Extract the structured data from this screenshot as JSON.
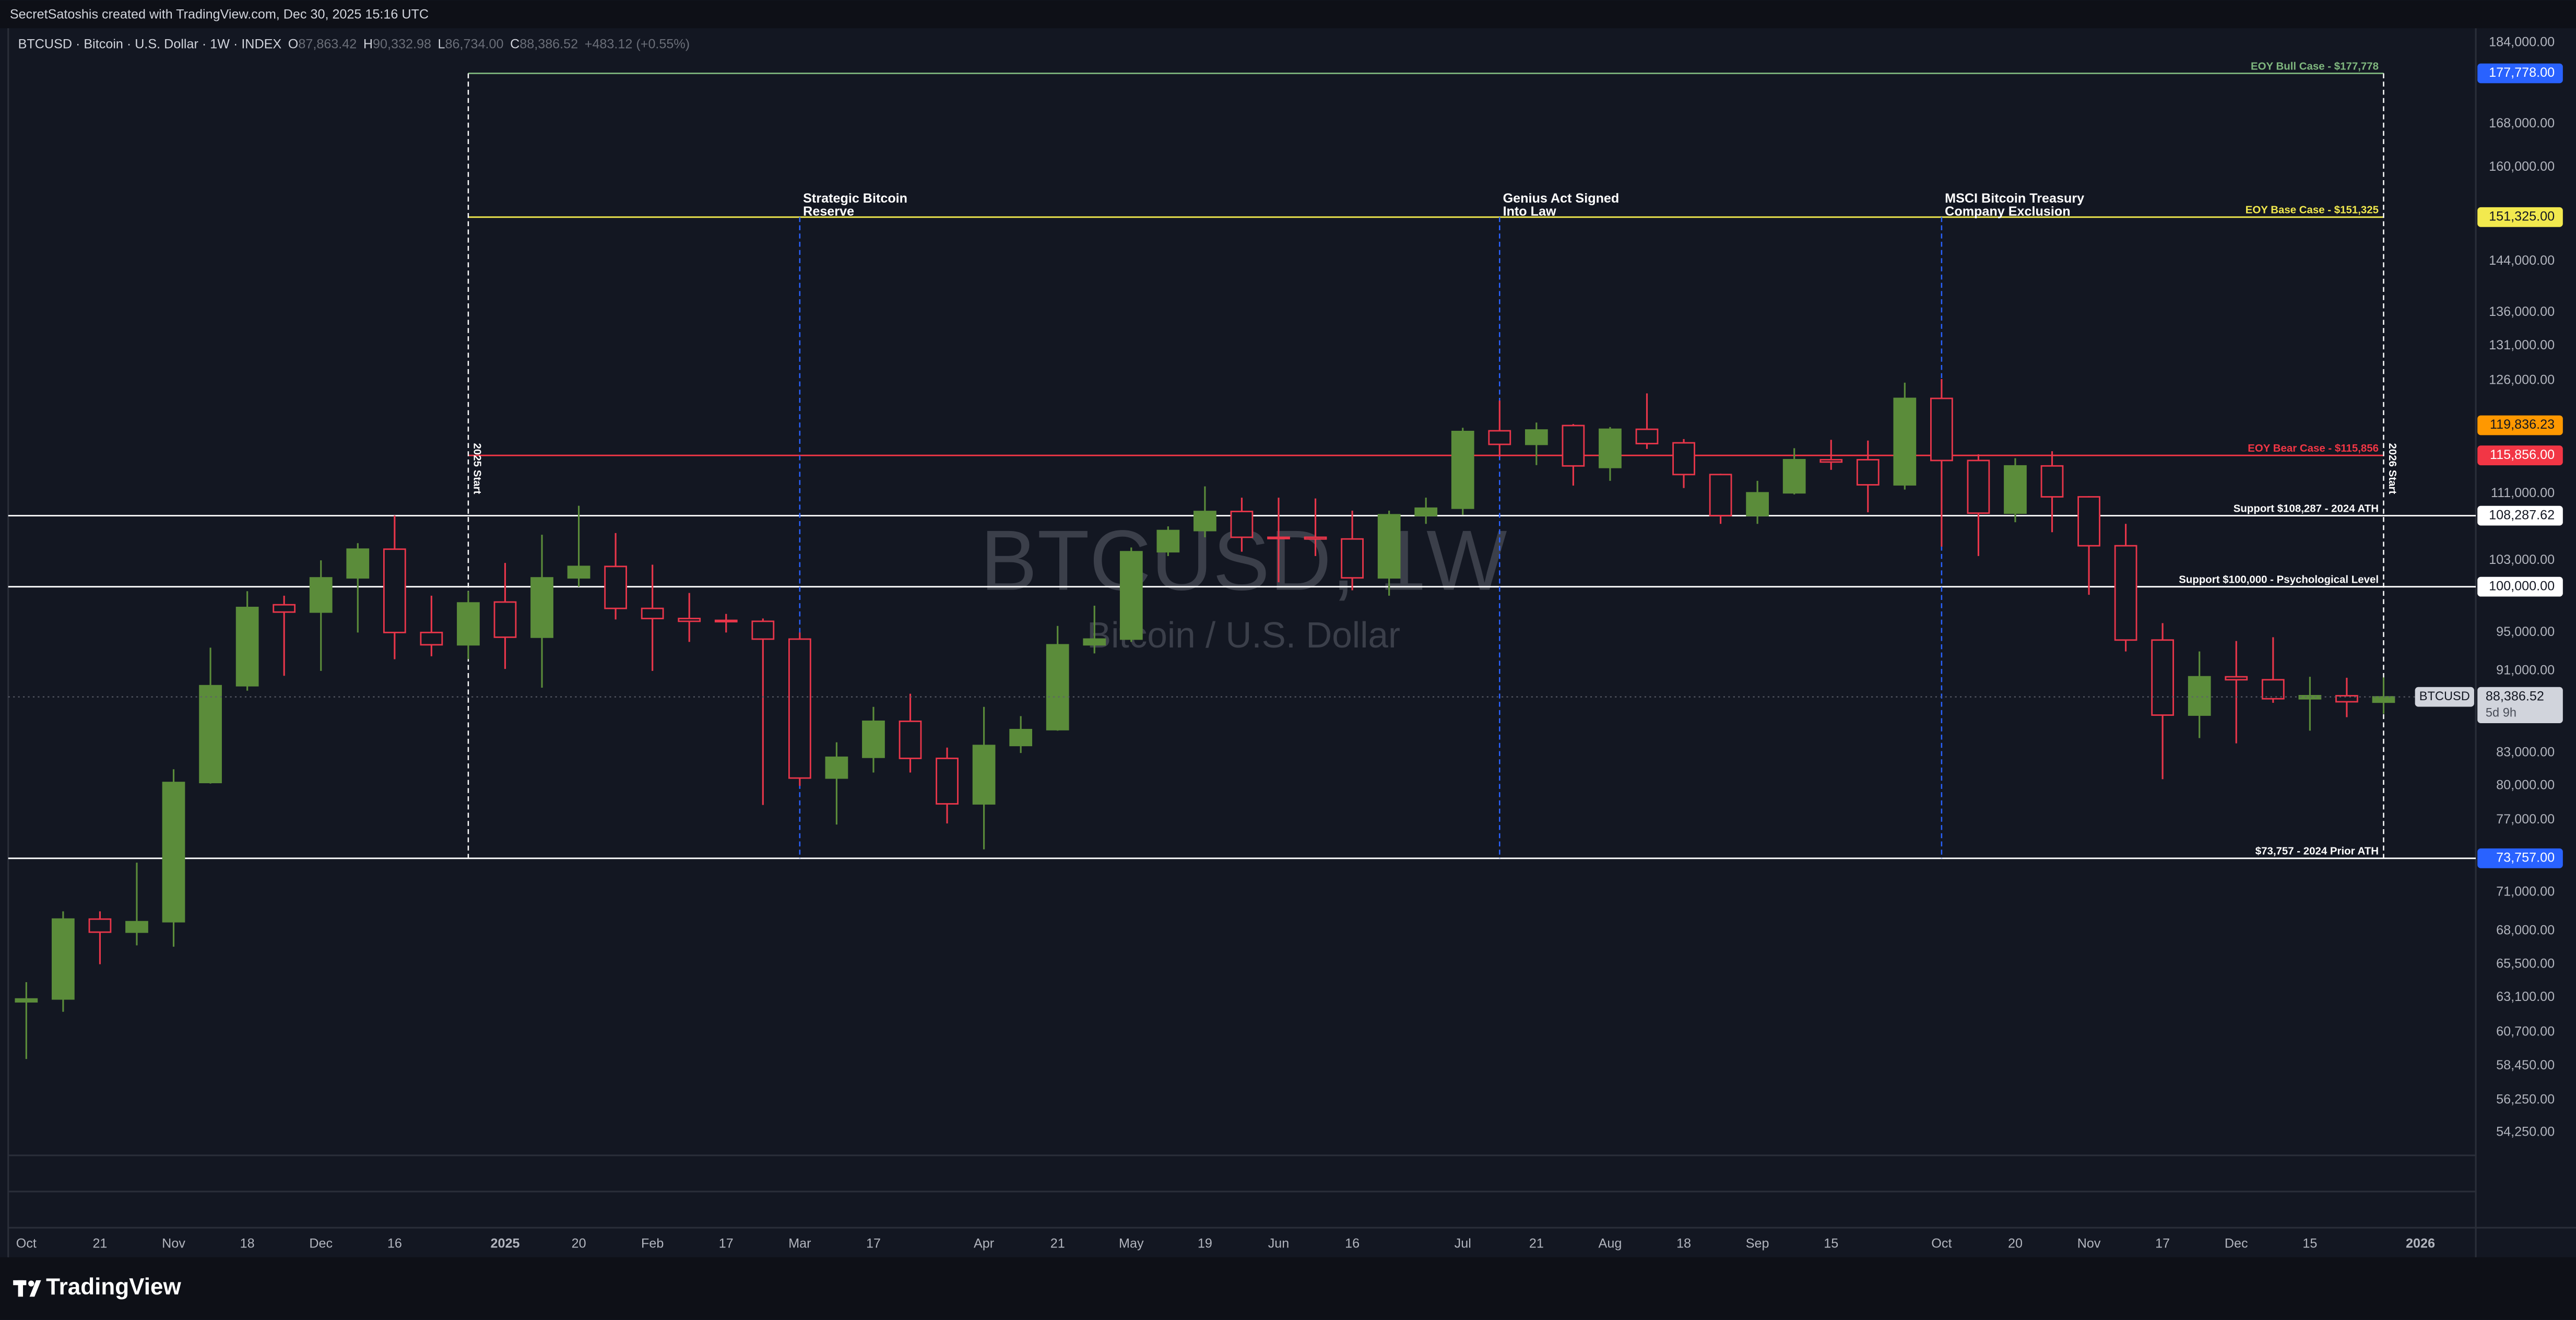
{
  "header": {
    "byline": "SecretSatoshis created with TradingView.com, Dec 30, 2025 15:16 UTC",
    "symbol": "BTCUSD · Bitcoin · U.S. Dollar · 1W · INDEX",
    "ohlc": [
      {
        "key": "O",
        "text": "87,863.42"
      },
      {
        "key": "H",
        "text": "90,332.98"
      },
      {
        "key": "L",
        "text": "86,734.00"
      },
      {
        "key": "C",
        "text": "88,386.52"
      }
    ],
    "change": "+483.12 (+0.55%)"
  },
  "watermark": {
    "title": "BTCUSD, 1W",
    "subtitle": "Bitcoin / U.S. Dollar"
  },
  "footer": {
    "logo": "TradingView"
  },
  "chart_data": {
    "type": "candlestick",
    "log_scale": true,
    "grid": false,
    "up_color": "#5b8c3a",
    "down_color": "#e8364a",
    "categories": [
      "Oct",
      null,
      "21",
      null,
      "Nov",
      null,
      "18",
      null,
      "Dec",
      null,
      "16",
      null,
      null,
      "2025",
      null,
      "20",
      null,
      "Feb",
      null,
      "17",
      null,
      "Mar",
      null,
      "17",
      null,
      null,
      "Apr",
      null,
      "21",
      null,
      "May",
      null,
      "19",
      null,
      "Jun",
      null,
      "16",
      null,
      null,
      "Jul",
      null,
      "21",
      null,
      "Aug",
      null,
      "18",
      null,
      "Sep",
      null,
      "15",
      null,
      null,
      "Oct",
      null,
      "20",
      null,
      "Nov",
      null,
      "17",
      null,
      "Dec",
      null,
      "15",
      null,
      null,
      "2026"
    ],
    "open": [
      62800,
      63000,
      68900,
      67900,
      68700,
      80300,
      89500,
      98000,
      97200,
      101000,
      104300,
      95000,
      93700,
      98300,
      94500,
      101000,
      102300,
      97600,
      96500,
      96300,
      96200,
      94300,
      80700,
      82600,
      86000,
      82500,
      78400,
      83700,
      85200,
      93700,
      94300,
      104000,
      106500,
      108800,
      105700,
      105700,
      105500,
      101000,
      108300,
      109200,
      119100,
      117300,
      119800,
      114300,
      119300,
      117500,
      113400,
      108300,
      111100,
      115300,
      115300,
      112100,
      123500,
      115200,
      108600,
      114500,
      110600,
      104700,
      94200,
      86600,
      90400,
      90100,
      88200,
      88500,
      87863.42,
      null
    ],
    "high": [
      64200,
      69500,
      69500,
      73400,
      81500,
      93400,
      99500,
      99000,
      103000,
      105000,
      108300,
      99000,
      99500,
      102700,
      106000,
      109500,
      106200,
      102500,
      99300,
      97000,
      96500,
      95000,
      84000,
      87400,
      88700,
      83500,
      87400,
      86500,
      95700,
      97900,
      104500,
      107000,
      111900,
      110500,
      110500,
      110400,
      108900,
      108900,
      110500,
      119500,
      123200,
      120200,
      120000,
      119600,
      124200,
      118000,
      113500,
      112600,
      116800,
      117900,
      117800,
      125700,
      126200,
      116000,
      115500,
      116400,
      110700,
      107300,
      96000,
      93000,
      94100,
      94500,
      90400,
      90300,
      90332.98,
      null
    ],
    "low": [
      58900,
      62100,
      65500,
      66900,
      66800,
      80200,
      89000,
      90500,
      91000,
      95000,
      92200,
      92500,
      92200,
      91200,
      89300,
      100000,
      96400,
      91000,
      94000,
      95000,
      78300,
      80000,
      76600,
      81200,
      81200,
      76700,
      74500,
      83000,
      85100,
      92800,
      94000,
      103500,
      105700,
      104000,
      100500,
      103500,
      99600,
      99000,
      107300,
      108400,
      115700,
      114600,
      112000,
      112600,
      116700,
      111700,
      107300,
      107300,
      110900,
      114000,
      108700,
      111500,
      104600,
      103500,
      107500,
      106300,
      99100,
      93000,
      80600,
      84400,
      83900,
      87800,
      85100,
      86400,
      86734,
      null
    ],
    "close": [
      63000,
      68900,
      67900,
      68700,
      80300,
      89500,
      97700,
      97200,
      101000,
      104300,
      95000,
      93700,
      98200,
      94500,
      101000,
      102300,
      97600,
      96500,
      96200,
      96200,
      94300,
      80700,
      82600,
      86000,
      82500,
      78400,
      83700,
      85200,
      93700,
      94300,
      104000,
      106500,
      108800,
      105700,
      105600,
      105500,
      101000,
      108400,
      109200,
      119000,
      117300,
      119200,
      114500,
      119300,
      117400,
      113400,
      108300,
      111100,
      115300,
      115000,
      112100,
      123500,
      115200,
      108600,
      114500,
      110600,
      104700,
      94200,
      86600,
      90400,
      90100,
      88200,
      88500,
      87903.4,
      88386.52,
      null
    ],
    "ylim": [
      52870,
      187000
    ],
    "yticks": [
      {
        "value": 184000,
        "label": "184,000.00"
      },
      {
        "value": 168000,
        "label": "168,000.00"
      },
      {
        "value": 160000,
        "label": "160,000.00"
      },
      {
        "value": 144000,
        "label": "144,000.00"
      },
      {
        "value": 136000,
        "label": "136,000.00"
      },
      {
        "value": 131000,
        "label": "131,000.00"
      },
      {
        "value": 126000,
        "label": "126,000.00"
      },
      {
        "value": 111000,
        "label": "111,000.00"
      },
      {
        "value": 103000,
        "label": "103,000.00"
      },
      {
        "value": 95000,
        "label": "95,000.00"
      },
      {
        "value": 91000,
        "label": "91,000.00"
      },
      {
        "value": 83000,
        "label": "83,000.00"
      },
      {
        "value": 80000,
        "label": "80,000.00"
      },
      {
        "value": 77000,
        "label": "77,000.00"
      },
      {
        "value": 71000,
        "label": "71,000.00"
      },
      {
        "value": 68000,
        "label": "68,000.00"
      },
      {
        "value": 65500,
        "label": "65,500.00"
      },
      {
        "value": 63100,
        "label": "63,100.00"
      },
      {
        "value": 60700,
        "label": "60,700.00"
      },
      {
        "value": 58450,
        "label": "58,450.00"
      },
      {
        "value": 56250,
        "label": "56,250.00"
      },
      {
        "value": 54250,
        "label": "54,250.00"
      }
    ],
    "levels": [
      {
        "label": "EOY Bull Case - $177,778",
        "value": 177778,
        "price_label": "177,778.00",
        "line_color": "#7fb77e",
        "box_color": "#2962ff",
        "x_range": [
          12,
          64
        ]
      },
      {
        "label": "EOY Base Case - $151,325",
        "value": 151325,
        "price_label": "151,325.00",
        "line_color": "#f2e94e",
        "box_color": "#f2e94e",
        "x_range": [
          12,
          64
        ]
      },
      {
        "label": "EOY Bear Case - $115,856",
        "value": 115856,
        "price_label": "115,856.00",
        "line_color": "#f23645",
        "box_color": "#f23645",
        "x_range": [
          12,
          64
        ]
      },
      {
        "label": "Support $108,287 - 2024 ATH",
        "value": 108287.62,
        "price_label": "108,287.62",
        "line_color": "#ffffff",
        "box_color": "#ffffff"
      },
      {
        "label": "Support $100,000 - Psychological Level",
        "value": 100000,
        "price_label": "100,000.00",
        "line_color": "#ffffff",
        "box_color": "#ffffff"
      },
      {
        "label": "$73,757 - 2024 Prior ATH",
        "value": 73757,
        "price_label": "73,757.00",
        "line_color": "#ffffff",
        "box_color": "#2962ff"
      }
    ],
    "price_markers": [
      {
        "label": "119,836.23",
        "value": 119836.23,
        "color": "#ff9800"
      }
    ],
    "events": [
      {
        "label": [
          "2025 Start"
        ],
        "x": 12,
        "color": "#ffffff",
        "vertical_label": true
      },
      {
        "label": [
          "Strategic Bitcoin",
          "Reserve"
        ],
        "x": 21,
        "color": "#2962ff"
      },
      {
        "label": [
          "Genius Act Signed",
          "Into Law"
        ],
        "x": 40,
        "color": "#2962ff"
      },
      {
        "label": [
          "MSCI Bitcoin Treasury",
          "Company Exclusion"
        ],
        "x": 52,
        "color": "#2962ff"
      },
      {
        "label": [
          "2026 Start"
        ],
        "x": 64,
        "color": "#ffffff",
        "vertical_label": true
      }
    ],
    "last_symbol": "BTCUSD",
    "last_label": "88,386.52",
    "countdown": "5d 9h"
  }
}
